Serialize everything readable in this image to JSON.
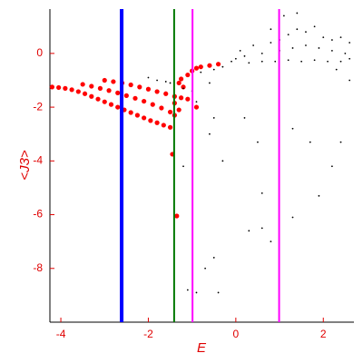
{
  "chart_data": {
    "type": "scatter",
    "x_label": "E",
    "y_label": "<J3>",
    "xlim": [
      -4.25,
      2.7
    ],
    "ylim": [
      -10,
      1.65
    ],
    "xticks": [
      -4,
      -2,
      0,
      2
    ],
    "yticks": [
      -8,
      -6,
      -4,
      -2,
      0
    ],
    "vlines": [
      {
        "x": -2.61,
        "color": "#0000ff"
      },
      {
        "x": -1.41,
        "color": "#007700"
      },
      {
        "x": -0.99,
        "color": "#ff00ff"
      },
      {
        "x": 0.99,
        "color": "#ff00ff"
      }
    ],
    "series": [
      {
        "color": "#ff0000",
        "x": [
          -4.2,
          -4.05,
          -3.9,
          -3.75,
          -3.6,
          -3.45,
          -3.3,
          -3.15,
          -3.0,
          -2.85,
          -2.7,
          -2.55,
          -2.4,
          -2.25,
          -2.1,
          -1.95,
          -1.8,
          -1.65,
          -1.5,
          -3.5,
          -3.3,
          -3.1,
          -2.9,
          -2.7,
          -2.5,
          -2.3,
          -2.1,
          -1.9,
          -1.7,
          -1.5,
          -1.4,
          -3.0,
          -2.8,
          -2.6,
          -2.4,
          -2.2,
          -2.0,
          -1.8,
          -1.6,
          -1.4,
          -1.25,
          -1.3,
          -1.25,
          -1.2,
          -1.1,
          -1.0,
          -0.9,
          -0.8,
          -0.6,
          -0.4,
          -1.45,
          -1.35,
          -1.4,
          -1.3,
          -1.1,
          -0.9
        ],
        "values": [
          -1.25,
          -1.27,
          -1.3,
          -1.35,
          -1.42,
          -1.5,
          -1.6,
          -1.7,
          -1.8,
          -1.9,
          -2.0,
          -2.1,
          -2.2,
          -2.3,
          -2.4,
          -2.5,
          -2.58,
          -2.67,
          -2.75,
          -1.15,
          -1.22,
          -1.3,
          -1.38,
          -1.47,
          -1.57,
          -1.67,
          -1.78,
          -1.9,
          -2.03,
          -2.18,
          -2.3,
          -1.0,
          -1.05,
          -1.1,
          -1.17,
          -1.25,
          -1.33,
          -1.42,
          -1.5,
          -1.6,
          -1.65,
          -1.1,
          -0.95,
          -1.25,
          -0.8,
          -0.65,
          -0.55,
          -0.5,
          -0.45,
          -0.4,
          -3.75,
          -6.05,
          -1.85,
          -2.1,
          -1.7,
          -2.0
        ]
      },
      {
        "color": "#000000",
        "x": [
          -2.0,
          -1.8,
          -1.6,
          -1.5,
          -1.2,
          -1.0,
          -0.9,
          -0.6,
          -0.8,
          0,
          0.2,
          0.4,
          0.6,
          0.8,
          1.0,
          1.2,
          1.4,
          1.6,
          1.8,
          2.0,
          2.2,
          2.4,
          2.6,
          0.3,
          0.6,
          0.9,
          1.2,
          1.5,
          1.8,
          2.1,
          2.4,
          2.6,
          1.0,
          1.3,
          1.6,
          1.9,
          2.2,
          2.5,
          1.1,
          1.4,
          0.8,
          -0.3,
          -0.5,
          -0.1,
          0.1,
          2.6,
          2.3,
          -0.5,
          -0.6,
          0.2,
          0.5,
          1.3,
          1.7,
          2.4,
          -0.3,
          0.6,
          2.2,
          1.9,
          1.3,
          0.3,
          0.8,
          -0.5,
          -0.7,
          -1.1,
          -0.9,
          -0.4,
          -1.2,
          0.6
        ],
        "values": [
          -0.9,
          -1.0,
          -1.05,
          -1.1,
          -1.3,
          -1.4,
          -1.8,
          -1.1,
          -0.7,
          -0.2,
          -0.1,
          0.3,
          0.0,
          0.4,
          0.5,
          0.7,
          0.9,
          0.8,
          1.0,
          0.6,
          0.5,
          0.6,
          0.4,
          -0.35,
          -0.3,
          -0.3,
          -0.25,
          -0.3,
          -0.25,
          -0.3,
          -0.3,
          -0.2,
          0.1,
          0.2,
          0.3,
          0.2,
          0.1,
          0.0,
          1.4,
          1.5,
          0.9,
          -0.5,
          -0.6,
          -0.3,
          0.1,
          -1.0,
          -0.6,
          -2.4,
          -3.0,
          -2.4,
          -3.3,
          -2.8,
          -3.3,
          -3.3,
          -4.0,
          -5.2,
          -4.2,
          -5.3,
          -6.1,
          -6.6,
          -7.0,
          -7.6,
          -8.0,
          -8.8,
          -8.9,
          -8.9,
          -4.2,
          -6.5
        ]
      }
    ]
  }
}
